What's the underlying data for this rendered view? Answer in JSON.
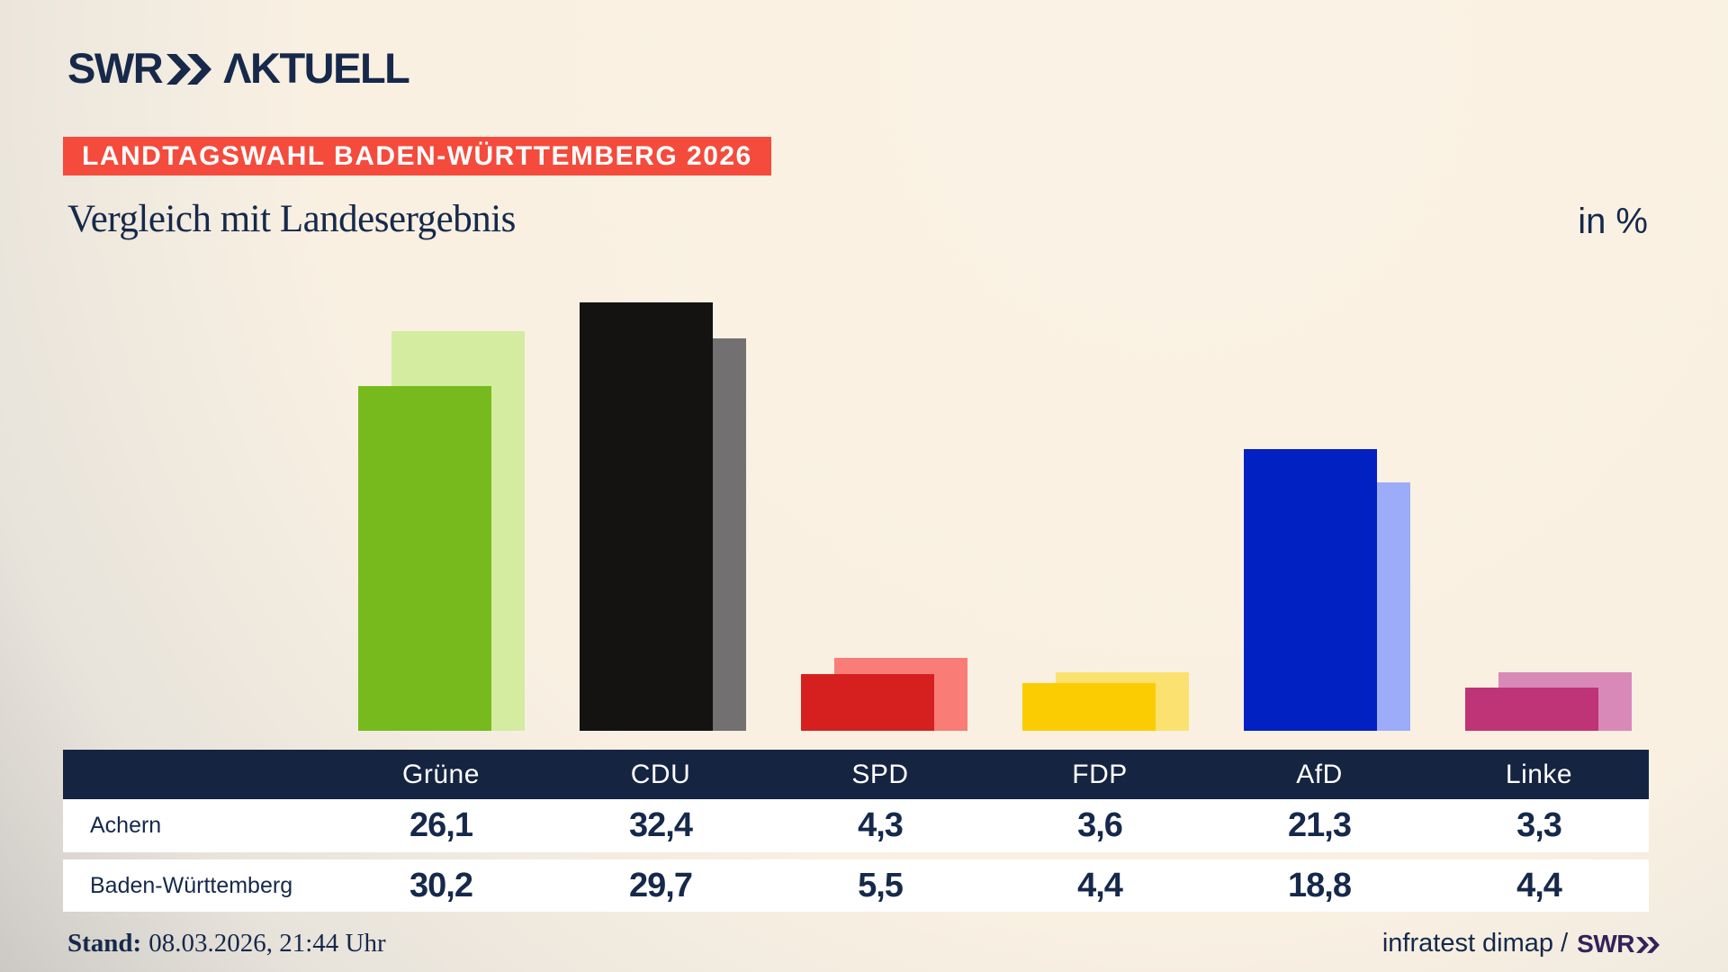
{
  "brand": {
    "logo_swr": "SWR",
    "logo_aktuell": "ΛKTUELL",
    "chevrons_icon": "double-chevron-right"
  },
  "badge": {
    "label": "LANDTAGSWAHL BADEN-WÜRTTEMBERG 2026"
  },
  "header": {
    "title": "Vergleich mit Landesergebnis",
    "unit_label": "in %"
  },
  "chart_data": {
    "type": "bar",
    "title": "Vergleich mit Landesergebnis",
    "unit": "%",
    "categories": [
      "Grüne",
      "CDU",
      "SPD",
      "FDP",
      "AfD",
      "Linke"
    ],
    "series": [
      {
        "name": "Achern",
        "values": [
          26.1,
          32.4,
          4.3,
          3.6,
          21.3,
          3.3
        ]
      },
      {
        "name": "Baden-Württemberg",
        "values": [
          30.2,
          29.7,
          5.5,
          4.4,
          18.8,
          4.4
        ]
      }
    ],
    "colors": {
      "achern": [
        "#76ba1e",
        "#141312",
        "#d62020",
        "#fccc02",
        "#0121c3",
        "#bf3377"
      ],
      "land": [
        "#d3ec9f",
        "#727070",
        "#f97c77",
        "#fbe170",
        "#9dacf9",
        "#d989b8"
      ]
    },
    "ylim": [
      0,
      35
    ],
    "grid": false,
    "legend": "table-below",
    "value_format": "german-comma"
  },
  "table": {
    "columns": [
      "Grüne",
      "CDU",
      "SPD",
      "FDP",
      "AfD",
      "Linke"
    ],
    "row_labels": [
      "Achern",
      "Baden-Württemberg"
    ]
  },
  "footer": {
    "stand_label": "Stand:",
    "stand_value": "08.03.2026, 21:44 Uhr",
    "source": "infratest dimap /",
    "source_brand": "SWR"
  },
  "colors": {
    "navy_text": "#16294b",
    "table_header_navy": "#152441",
    "badge_red": "#f44b3c",
    "background_cream": "#f9f0e2",
    "background_corner_gray": "#c2bfbc",
    "footer_brand_purple": "#33215a"
  }
}
